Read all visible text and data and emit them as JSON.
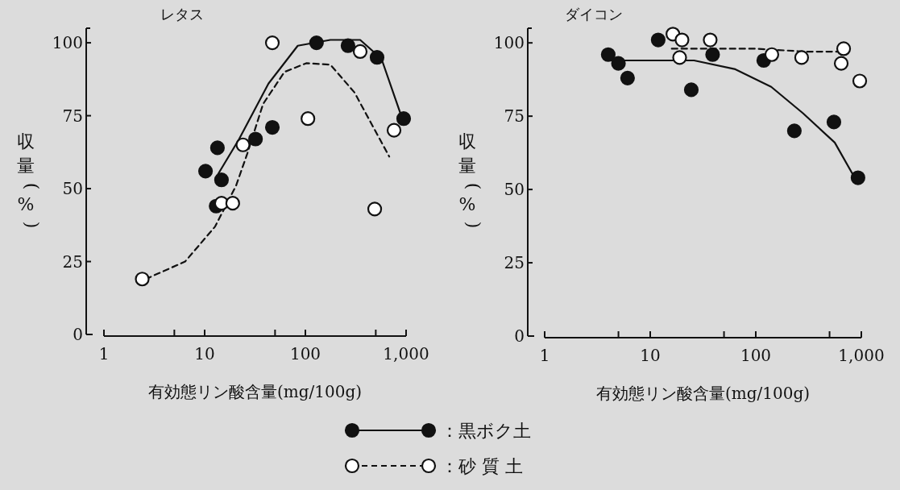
{
  "chart_data": [
    {
      "type": "scatter",
      "title": "レタス",
      "xlabel": "有効態リン酸含量(mg/100g)",
      "ylabel": "収量(%)",
      "log": "x",
      "xlim": [
        1,
        1000
      ],
      "ylim": [
        0,
        105
      ],
      "xticks": [
        1,
        {
          "value": 5,
          "label": null
        },
        10,
        {
          "value": 50,
          "label": null
        },
        100,
        {
          "value": 500,
          "label": null
        },
        {
          "value": 1000,
          "label": "1,000"
        }
      ],
      "yticks": [
        0,
        25,
        50,
        75,
        100
      ],
      "grid": false,
      "legend": "bottom",
      "series": [
        {
          "name": "：黒ボク土",
          "marker": "circle",
          "color": "#111111",
          "x": [
            10.2,
            13.4,
            14.7,
            13,
            32,
            47,
            129,
            265,
            515,
            946
          ],
          "values": [
            56,
            64,
            53,
            44,
            67,
            71,
            100,
            99,
            95,
            74
          ]
        },
        {
          "name": "：砂 質 土",
          "marker": "circle",
          "color": "#ffffff",
          "x": [
            2.4,
            47,
            24,
            14.7,
            19,
            106,
            350,
            488,
            759
          ],
          "values": [
            19,
            100,
            65,
            45,
            45,
            74,
            97,
            43,
            70
          ]
        },
        {
          "type": "line",
          "marker": "none",
          "line_style": "solid",
          "color": "#111111",
          "x": [
            13.6,
            22,
            43,
            84,
            177,
            350,
            570,
            895
          ],
          "values": [
            55,
            67,
            86,
            99,
            101,
            101,
            94.5,
            75
          ]
        },
        {
          "type": "line",
          "marker": "none",
          "line_style": "dashed",
          "color": "#111111",
          "x": [
            2.6,
            6.4,
            12.7,
            20.5,
            26.5,
            38,
            62,
            102,
            177,
            307,
            680
          ],
          "values": [
            19,
            25,
            37,
            51,
            62,
            79,
            90,
            93,
            92.5,
            83,
            61
          ]
        }
      ]
    },
    {
      "type": "scatter",
      "title": "ダイコン",
      "xlabel": "有効態リン酸含量(mg/100g)",
      "ylabel": "収量(%)",
      "log": "x",
      "xlim": [
        1,
        1000
      ],
      "ylim": [
        0,
        105
      ],
      "xticks": [
        1,
        {
          "value": 5,
          "label": null
        },
        10,
        {
          "value": 50,
          "label": null
        },
        100,
        {
          "value": 500,
          "label": null
        },
        {
          "value": 1000,
          "label": "1,000"
        }
      ],
      "yticks": [
        0,
        25,
        50,
        75,
        100
      ],
      "grid": false,
      "series": [
        {
          "marker": "circle",
          "color": "#111111",
          "x": [
            4,
            5,
            6.1,
            11.9,
            24.5,
            39,
            119,
            232,
            550,
            930
          ],
          "values": [
            96,
            93,
            88,
            101,
            84,
            96,
            94,
            70,
            73,
            54
          ]
        },
        {
          "marker": "circle",
          "color": "#ffffff",
          "x": [
            16.4,
            20,
            19,
            37,
            142,
            272,
            680,
            645,
            966
          ],
          "values": [
            103,
            101,
            95,
            101,
            96,
            95,
            98,
            93,
            87
          ]
        },
        {
          "type": "line",
          "marker": "none",
          "line_style": "solid",
          "color": "#111111",
          "x": [
            4.2,
            6,
            26,
            64,
            140,
            280,
            560,
            850
          ],
          "values": [
            94,
            94,
            94,
            91,
            85,
            76,
            66,
            54.5
          ]
        },
        {
          "type": "line",
          "marker": "none",
          "line_style": "dashed",
          "color": "#111111",
          "x": [
            16,
            100,
            300,
            700
          ],
          "values": [
            98,
            98,
            97,
            97
          ]
        }
      ]
    }
  ]
}
